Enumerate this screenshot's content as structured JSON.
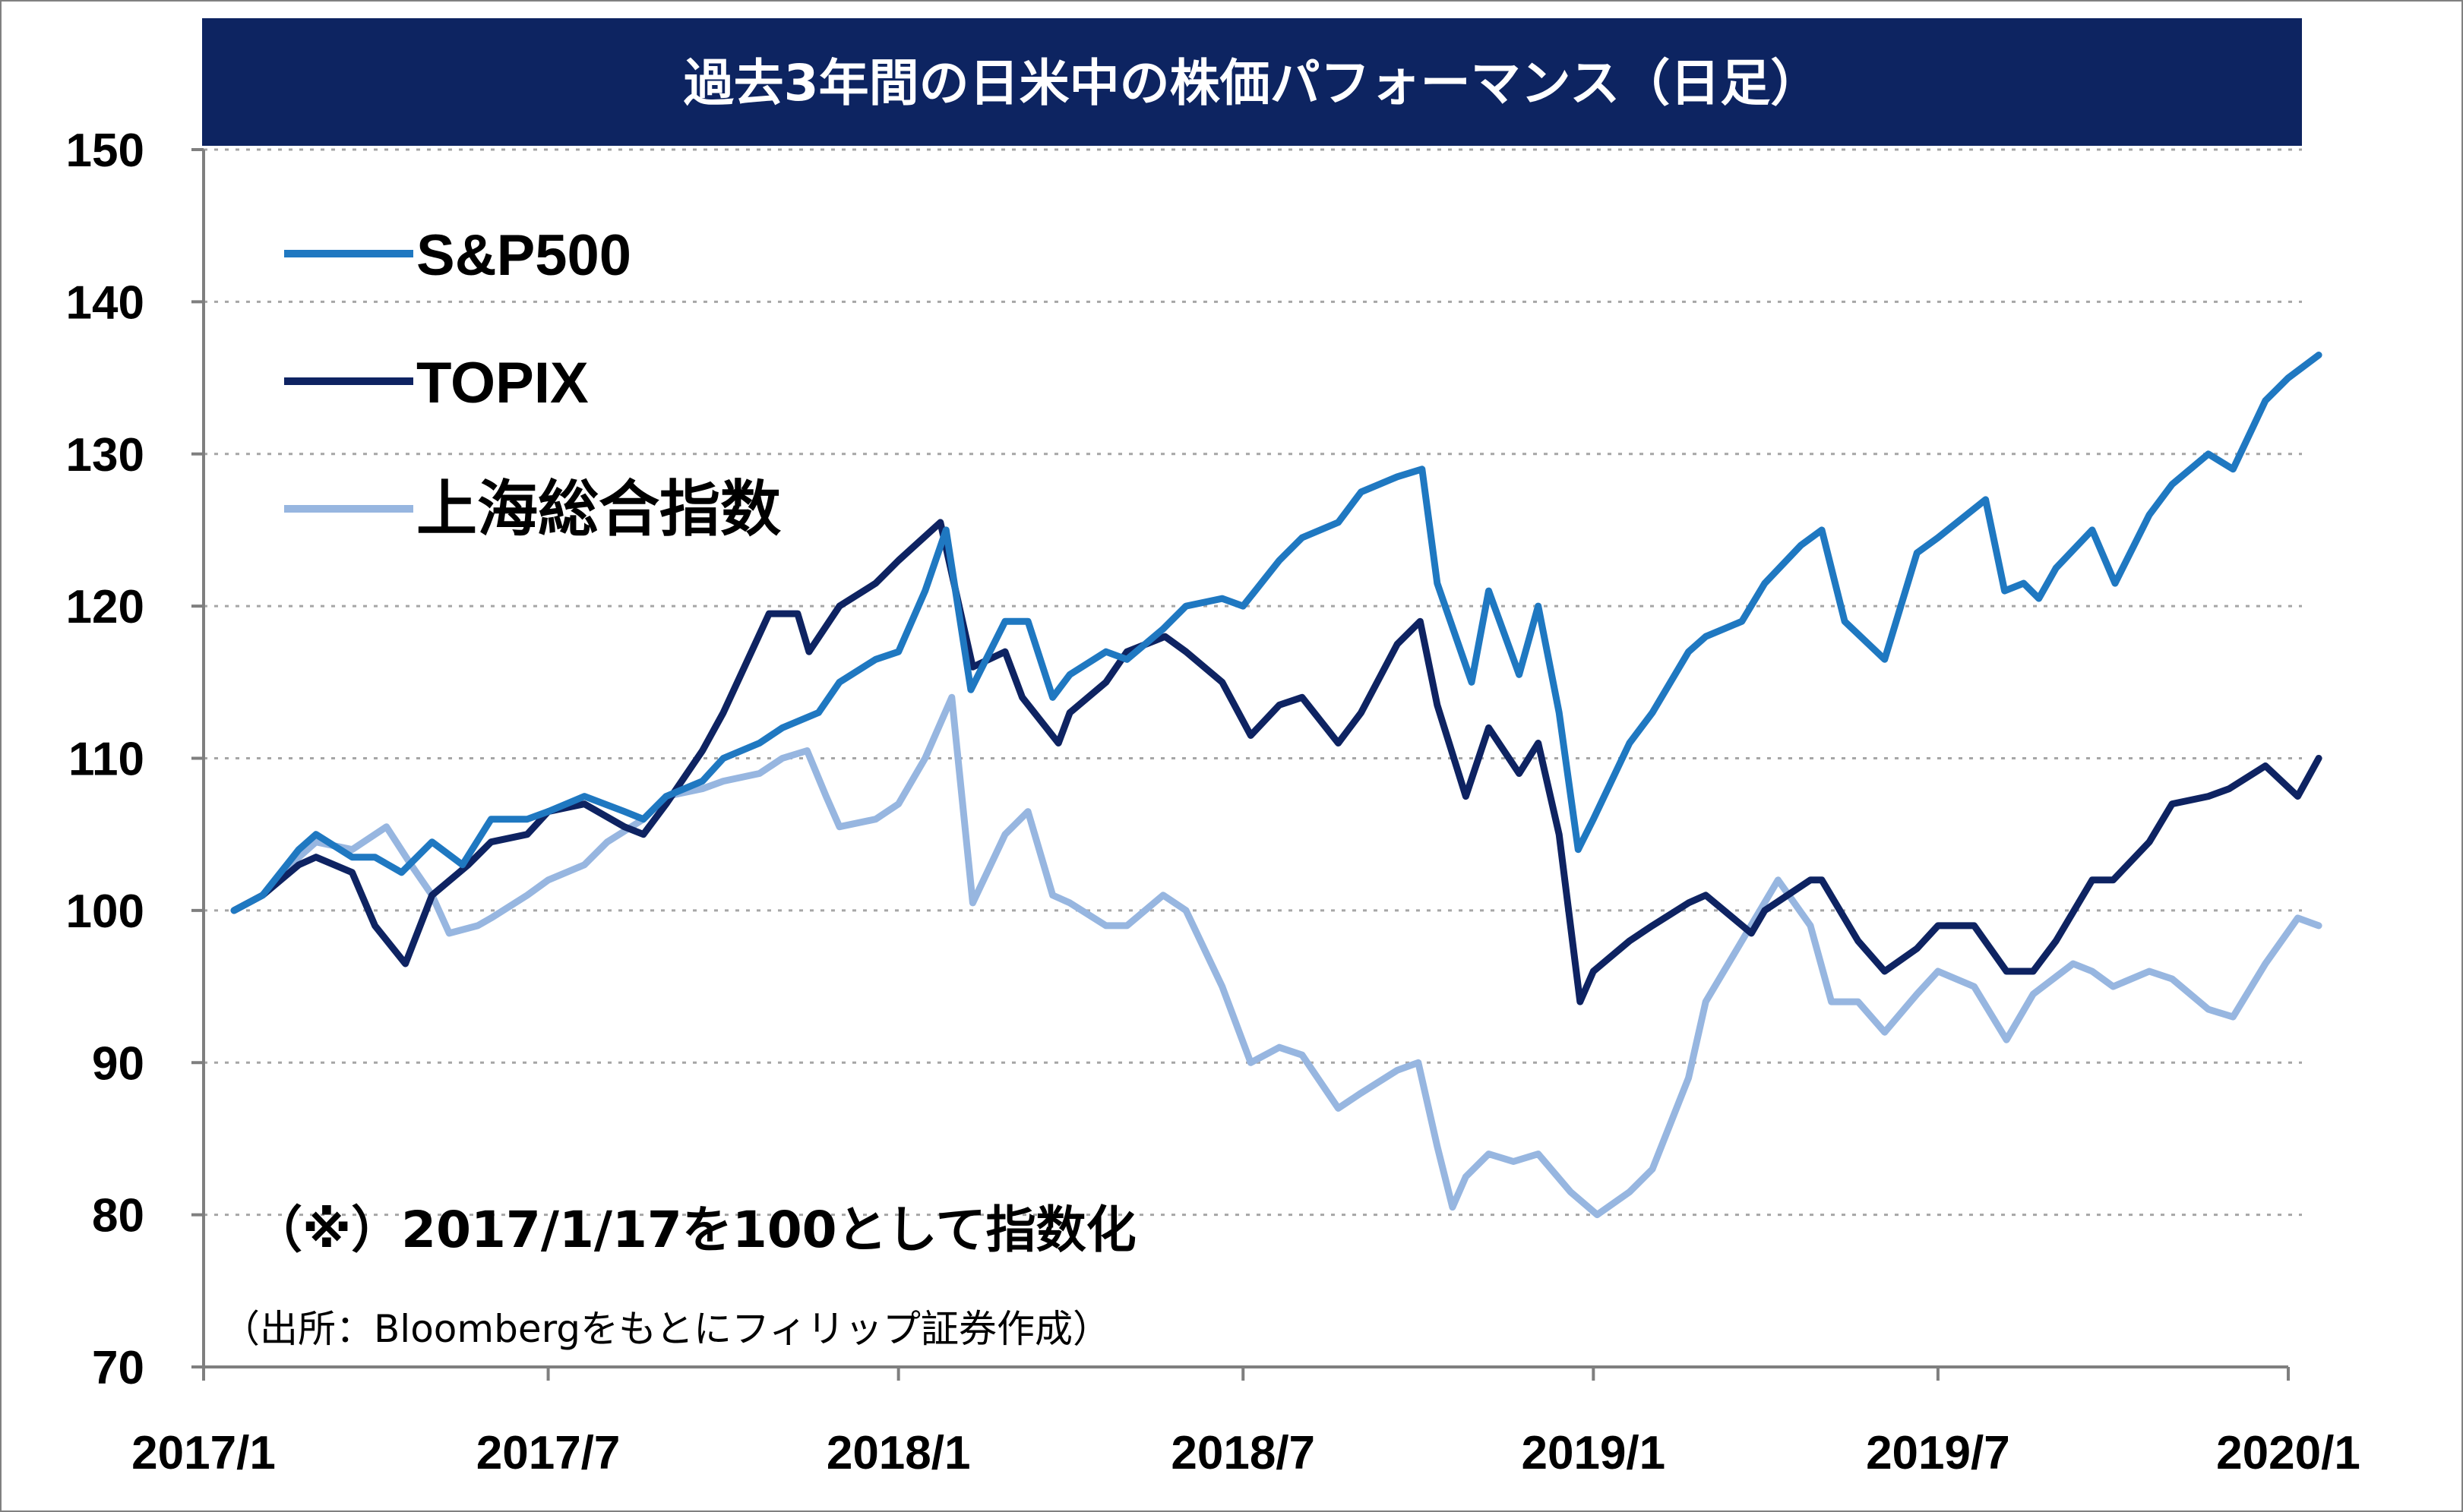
{
  "chart_data": {
    "type": "line",
    "title": "過去3年間の日米中の株価パフォーマンス（日足）",
    "note": "（※）2017/1/17を100として指数化",
    "source": "（出所：Bloombergをもとにフィリップ証券作成）",
    "x_ticks": [
      "2017/1",
      "2017/7",
      "2018/1",
      "2018/7",
      "2019/1",
      "2019/7",
      "2020/1"
    ],
    "y_ticks": [
      70,
      80,
      90,
      100,
      110,
      120,
      130,
      140,
      150
    ],
    "ylim": [
      70,
      150
    ],
    "grid": true,
    "legend_position": "top-left",
    "colors": {
      "title_bg": "#0d2461",
      "sp500": "#1f78c1",
      "topix": "#0e2362",
      "shanghai": "#97b6e0",
      "grid": "#a6a6a6",
      "axis": "#7f7f7f"
    },
    "series": [
      {
        "name": "S&P500",
        "key": "sp500",
        "points": [
          [
            "2017-01-17",
            100
          ],
          [
            "2017-02-01",
            101
          ],
          [
            "2017-02-20",
            104
          ],
          [
            "2017-03-01",
            105
          ],
          [
            "2017-03-20",
            103.5
          ],
          [
            "2017-04-01",
            103.5
          ],
          [
            "2017-04-15",
            102.5
          ],
          [
            "2017-05-01",
            104.5
          ],
          [
            "2017-05-17",
            103
          ],
          [
            "2017-06-01",
            106
          ],
          [
            "2017-06-20",
            106
          ],
          [
            "2017-07-01",
            106.5
          ],
          [
            "2017-07-20",
            107.5
          ],
          [
            "2017-08-10",
            106.5
          ],
          [
            "2017-08-20",
            106
          ],
          [
            "2017-09-01",
            107.5
          ],
          [
            "2017-09-20",
            108.5
          ],
          [
            "2017-10-01",
            110
          ],
          [
            "2017-10-20",
            111
          ],
          [
            "2017-11-01",
            112
          ],
          [
            "2017-11-20",
            113
          ],
          [
            "2017-12-01",
            115
          ],
          [
            "2017-12-20",
            116.5
          ],
          [
            "2018-01-01",
            117
          ],
          [
            "2018-01-15",
            121
          ],
          [
            "2018-01-26",
            125
          ],
          [
            "2018-02-08",
            114.5
          ],
          [
            "2018-02-26",
            119
          ],
          [
            "2018-03-10",
            119
          ],
          [
            "2018-03-23",
            114
          ],
          [
            "2018-04-01",
            115.5
          ],
          [
            "2018-04-20",
            117
          ],
          [
            "2018-05-01",
            116.5
          ],
          [
            "2018-05-20",
            118.5
          ],
          [
            "2018-06-01",
            120
          ],
          [
            "2018-06-20",
            120.5
          ],
          [
            "2018-07-01",
            120
          ],
          [
            "2018-07-20",
            123
          ],
          [
            "2018-08-01",
            124.5
          ],
          [
            "2018-08-20",
            125.5
          ],
          [
            "2018-09-01",
            127.5
          ],
          [
            "2018-09-20",
            128.5
          ],
          [
            "2018-10-03",
            129
          ],
          [
            "2018-10-11",
            121.5
          ],
          [
            "2018-10-29",
            115
          ],
          [
            "2018-11-07",
            121
          ],
          [
            "2018-11-23",
            115.5
          ],
          [
            "2018-12-03",
            120
          ],
          [
            "2018-12-14",
            113
          ],
          [
            "2018-12-24",
            104
          ],
          [
            "2019-01-01",
            106
          ],
          [
            "2019-01-20",
            111
          ],
          [
            "2019-02-01",
            113
          ],
          [
            "2019-02-20",
            117
          ],
          [
            "2019-03-01",
            118
          ],
          [
            "2019-03-20",
            119
          ],
          [
            "2019-04-01",
            121.5
          ],
          [
            "2019-04-20",
            124
          ],
          [
            "2019-05-01",
            125
          ],
          [
            "2019-05-13",
            119
          ],
          [
            "2019-06-03",
            116.5
          ],
          [
            "2019-06-20",
            123.5
          ],
          [
            "2019-07-01",
            124.5
          ],
          [
            "2019-07-26",
            127
          ],
          [
            "2019-08-05",
            121
          ],
          [
            "2019-08-15",
            121.5
          ],
          [
            "2019-08-23",
            120.5
          ],
          [
            "2019-09-01",
            122.5
          ],
          [
            "2019-09-20",
            125
          ],
          [
            "2019-10-02",
            121.5
          ],
          [
            "2019-10-20",
            126
          ],
          [
            "2019-11-01",
            128
          ],
          [
            "2019-11-20",
            130
          ],
          [
            "2019-12-03",
            129
          ],
          [
            "2019-12-20",
            133.5
          ],
          [
            "2020-01-01",
            135
          ],
          [
            "2020-01-17",
            136.5
          ]
        ]
      },
      {
        "name": "TOPIX",
        "key": "topix",
        "points": [
          [
            "2017-01-17",
            100
          ],
          [
            "2017-02-01",
            101
          ],
          [
            "2017-02-20",
            103
          ],
          [
            "2017-03-01",
            103.5
          ],
          [
            "2017-03-20",
            102.5
          ],
          [
            "2017-04-01",
            99
          ],
          [
            "2017-04-17",
            96.5
          ],
          [
            "2017-05-01",
            101
          ],
          [
            "2017-05-20",
            103
          ],
          [
            "2017-06-01",
            104.5
          ],
          [
            "2017-06-20",
            105
          ],
          [
            "2017-07-01",
            106.5
          ],
          [
            "2017-07-20",
            107
          ],
          [
            "2017-08-10",
            105.5
          ],
          [
            "2017-08-20",
            105
          ],
          [
            "2017-09-01",
            107
          ],
          [
            "2017-09-20",
            110.5
          ],
          [
            "2017-10-01",
            113
          ],
          [
            "2017-10-25",
            119.5
          ],
          [
            "2017-11-09",
            119.5
          ],
          [
            "2017-11-15",
            117
          ],
          [
            "2017-12-01",
            120
          ],
          [
            "2017-12-20",
            121.5
          ],
          [
            "2018-01-01",
            123
          ],
          [
            "2018-01-23",
            125.5
          ],
          [
            "2018-02-09",
            116
          ],
          [
            "2018-02-26",
            117
          ],
          [
            "2018-03-07",
            114
          ],
          [
            "2018-03-26",
            111
          ],
          [
            "2018-04-01",
            113
          ],
          [
            "2018-04-20",
            115
          ],
          [
            "2018-05-01",
            117
          ],
          [
            "2018-05-21",
            118
          ],
          [
            "2018-06-01",
            117
          ],
          [
            "2018-06-20",
            115
          ],
          [
            "2018-07-05",
            111.5
          ],
          [
            "2018-07-20",
            113.5
          ],
          [
            "2018-08-01",
            114
          ],
          [
            "2018-08-20",
            111
          ],
          [
            "2018-09-01",
            113
          ],
          [
            "2018-09-20",
            117.5
          ],
          [
            "2018-10-02",
            119
          ],
          [
            "2018-10-11",
            113.5
          ],
          [
            "2018-10-26",
            107.5
          ],
          [
            "2018-11-07",
            112
          ],
          [
            "2018-11-23",
            109
          ],
          [
            "2018-12-03",
            111
          ],
          [
            "2018-12-14",
            105
          ],
          [
            "2018-12-25",
            94
          ],
          [
            "2019-01-01",
            96
          ],
          [
            "2019-01-20",
            98
          ],
          [
            "2019-02-01",
            99
          ],
          [
            "2019-02-20",
            100.5
          ],
          [
            "2019-03-01",
            101
          ],
          [
            "2019-03-25",
            98.5
          ],
          [
            "2019-04-01",
            100
          ],
          [
            "2019-04-25",
            102
          ],
          [
            "2019-05-01",
            102
          ],
          [
            "2019-05-20",
            98
          ],
          [
            "2019-06-03",
            96
          ],
          [
            "2019-06-20",
            97.5
          ],
          [
            "2019-07-01",
            99
          ],
          [
            "2019-07-20",
            99
          ],
          [
            "2019-08-06",
            96
          ],
          [
            "2019-08-20",
            96
          ],
          [
            "2019-09-01",
            98
          ],
          [
            "2019-09-20",
            102
          ],
          [
            "2019-10-01",
            102
          ],
          [
            "2019-10-20",
            104.5
          ],
          [
            "2019-11-01",
            107
          ],
          [
            "2019-11-20",
            107.5
          ],
          [
            "2019-12-01",
            108
          ],
          [
            "2019-12-20",
            109.5
          ],
          [
            "2020-01-06",
            107.5
          ],
          [
            "2020-01-17",
            110
          ]
        ]
      },
      {
        "name": "上海総合指数",
        "key": "shanghai",
        "points": [
          [
            "2017-01-17",
            100
          ],
          [
            "2017-02-01",
            101
          ],
          [
            "2017-02-20",
            103.5
          ],
          [
            "2017-03-01",
            104.5
          ],
          [
            "2017-03-20",
            104
          ],
          [
            "2017-04-07",
            105.5
          ],
          [
            "2017-04-20",
            103
          ],
          [
            "2017-05-01",
            101
          ],
          [
            "2017-05-10",
            98.5
          ],
          [
            "2017-05-25",
            99
          ],
          [
            "2017-06-01",
            99.5
          ],
          [
            "2017-06-20",
            101
          ],
          [
            "2017-07-01",
            102
          ],
          [
            "2017-07-20",
            103
          ],
          [
            "2017-08-01",
            104.5
          ],
          [
            "2017-08-20",
            106
          ],
          [
            "2017-09-01",
            107.5
          ],
          [
            "2017-09-20",
            108
          ],
          [
            "2017-10-01",
            108.5
          ],
          [
            "2017-10-20",
            109
          ],
          [
            "2017-11-01",
            110
          ],
          [
            "2017-11-14",
            110.5
          ],
          [
            "2017-11-24",
            107.5
          ],
          [
            "2017-12-01",
            105.5
          ],
          [
            "2017-12-20",
            106
          ],
          [
            "2018-01-01",
            107
          ],
          [
            "2018-01-15",
            110
          ],
          [
            "2018-01-29",
            114
          ],
          [
            "2018-02-09",
            100.5
          ],
          [
            "2018-02-26",
            105
          ],
          [
            "2018-03-10",
            106.5
          ],
          [
            "2018-03-23",
            101
          ],
          [
            "2018-04-01",
            100.5
          ],
          [
            "2018-04-20",
            99
          ],
          [
            "2018-05-01",
            99
          ],
          [
            "2018-05-20",
            101
          ],
          [
            "2018-06-01",
            100
          ],
          [
            "2018-06-20",
            95
          ],
          [
            "2018-07-05",
            90
          ],
          [
            "2018-07-20",
            91
          ],
          [
            "2018-08-01",
            90.5
          ],
          [
            "2018-08-20",
            87
          ],
          [
            "2018-09-01",
            88
          ],
          [
            "2018-09-20",
            89.5
          ],
          [
            "2018-10-01",
            90
          ],
          [
            "2018-10-11",
            84.5
          ],
          [
            "2018-10-19",
            80.5
          ],
          [
            "2018-10-26",
            82.5
          ],
          [
            "2018-11-07",
            84
          ],
          [
            "2018-11-20",
            83.5
          ],
          [
            "2018-12-03",
            84
          ],
          [
            "2018-12-20",
            81.5
          ],
          [
            "2019-01-03",
            80
          ],
          [
            "2019-01-20",
            81.5
          ],
          [
            "2019-02-01",
            83
          ],
          [
            "2019-02-20",
            89
          ],
          [
            "2019-03-01",
            94
          ],
          [
            "2019-03-20",
            98
          ],
          [
            "2019-04-08",
            102
          ],
          [
            "2019-04-25",
            99
          ],
          [
            "2019-05-06",
            94
          ],
          [
            "2019-05-20",
            94
          ],
          [
            "2019-06-03",
            92
          ],
          [
            "2019-06-20",
            94.5
          ],
          [
            "2019-07-01",
            96
          ],
          [
            "2019-07-20",
            95
          ],
          [
            "2019-08-06",
            91.5
          ],
          [
            "2019-08-20",
            94.5
          ],
          [
            "2019-09-10",
            96.5
          ],
          [
            "2019-09-20",
            96
          ],
          [
            "2019-10-01",
            95
          ],
          [
            "2019-10-20",
            96
          ],
          [
            "2019-11-01",
            95.5
          ],
          [
            "2019-11-20",
            93.5
          ],
          [
            "2019-12-03",
            93
          ],
          [
            "2019-12-20",
            96.5
          ],
          [
            "2020-01-06",
            99.5
          ],
          [
            "2020-01-17",
            99
          ]
        ]
      }
    ]
  }
}
